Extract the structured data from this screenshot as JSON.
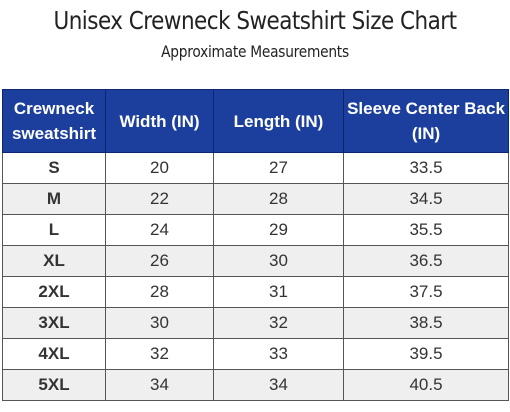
{
  "title": "Unisex Crewneck Sweatshirt Size Chart",
  "subtitle": "Approximate Measurements",
  "headers": [
    {
      "line1": "Crewneck",
      "line2": "sweatshirt"
    },
    {
      "line1": "Width (IN)",
      "line2": ""
    },
    {
      "line1": "Length (IN)",
      "line2": ""
    },
    {
      "line1": "Sleeve Center Back",
      "line2": "(IN)"
    }
  ],
  "rows": [
    [
      "S",
      "20",
      "27",
      "33.5"
    ],
    [
      "M",
      "22",
      "28",
      "34.5"
    ],
    [
      "L",
      "24",
      "29",
      "35.5"
    ],
    [
      "XL",
      "26",
      "30",
      "36.5"
    ],
    [
      "2XL",
      "28",
      "31",
      "37.5"
    ],
    [
      "3XL",
      "30",
      "32",
      "38.5"
    ],
    [
      "4XL",
      "32",
      "33",
      "39.5"
    ],
    [
      "5XL",
      "34",
      "34",
      "40.5"
    ]
  ],
  "colors": {
    "header_bg": "#1c3f9e",
    "header_text": "#ffffff",
    "alt_row": "#f0efef"
  }
}
